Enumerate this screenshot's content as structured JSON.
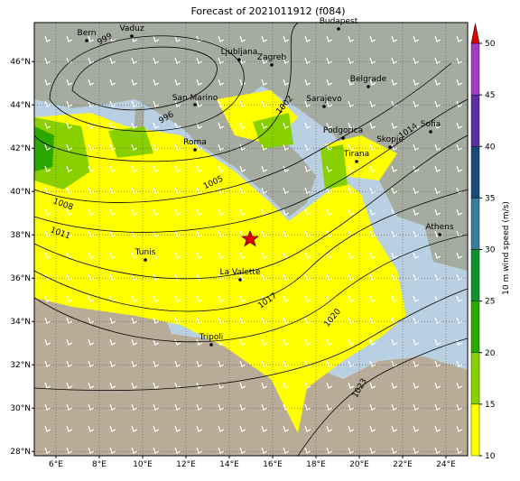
{
  "title": "Forecast of 2021011912 (f084)",
  "lon_ticks": [
    {
      "value": 6,
      "label": "6°E"
    },
    {
      "value": 8,
      "label": "8°E"
    },
    {
      "value": 10,
      "label": "10°E"
    },
    {
      "value": 12,
      "label": "12°E"
    },
    {
      "value": 14,
      "label": "14°E"
    },
    {
      "value": 16,
      "label": "16°E"
    },
    {
      "value": 18,
      "label": "18°E"
    },
    {
      "value": 20,
      "label": "20°E"
    },
    {
      "value": 22,
      "label": "22°E"
    },
    {
      "value": 24,
      "label": "24°E"
    }
  ],
  "lat_ticks": [
    {
      "value": 28,
      "label": "28°N"
    },
    {
      "value": 30,
      "label": "30°N"
    },
    {
      "value": 32,
      "label": "32°N"
    },
    {
      "value": 34,
      "label": "34°N"
    },
    {
      "value": 36,
      "label": "36°N"
    },
    {
      "value": 38,
      "label": "38°N"
    },
    {
      "value": 40,
      "label": "40°N"
    },
    {
      "value": 42,
      "label": "42°N"
    },
    {
      "value": 44,
      "label": "44°N"
    },
    {
      "value": 46,
      "label": "46°N"
    }
  ],
  "lon_lim": [
    5,
    25
  ],
  "lat_lim": [
    27.8,
    47.8
  ],
  "cities": [
    "Bern",
    "Vaduz",
    "Budapest",
    "Ljubljana",
    "Zagreb",
    "San Marino",
    "Sarajevo",
    "Belgrade",
    "Roma",
    "Podgorica",
    "Skopje",
    "Sofia",
    "Tirana",
    "Athens",
    "Tunis",
    "La Valette",
    "Tripoli"
  ],
  "isobar_labels": [
    "999",
    "996",
    "1002",
    "1005",
    "1008",
    "1011",
    "1014",
    "1017",
    "1020",
    "1023"
  ],
  "colorbar": {
    "label": "10 m wind speed (m/s)",
    "lim": [
      10,
      50
    ],
    "ticks": [
      10,
      15,
      20,
      25,
      30,
      35,
      40,
      45,
      50
    ],
    "colors": [
      "#ffff00",
      "#88d000",
      "#2aa800",
      "#129030",
      "#3a7c9c",
      "#1c4a78",
      "#5a30a0",
      "#a040c0"
    ],
    "extend_color": "#e00000"
  }
}
